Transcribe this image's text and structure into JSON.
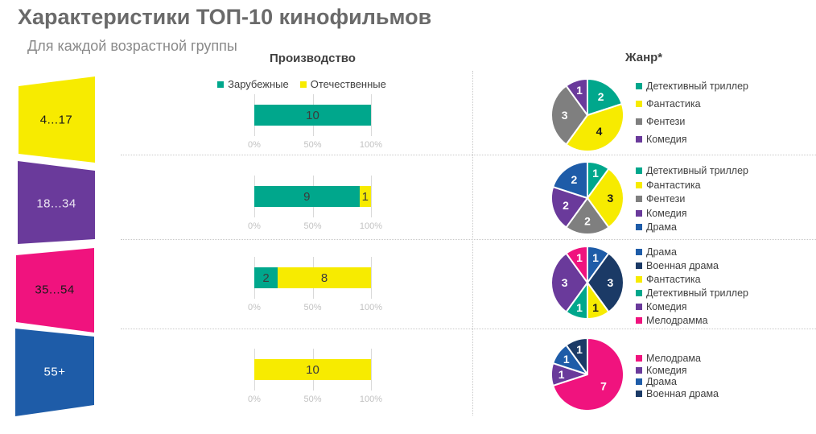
{
  "title": "Характеристики ТОП-10 кинофильмов",
  "subtitle": "Для каждой возрастной группы",
  "colors": {
    "teal": "#00A78C",
    "yellow": "#F7EB00",
    "gray": "#7F7F7F",
    "purple": "#6A3A9B",
    "blue": "#1E5CA8",
    "navy": "#1B3A66",
    "pink": "#F0137E",
    "title_gray": "#6A6A6A",
    "text_dark": "#404040",
    "axis_gray": "#C2C2C2",
    "grid_gray": "#D9D9D9"
  },
  "production": {
    "header": "Производство",
    "legend": [
      {
        "label": "Зарубежные",
        "color": "teal"
      },
      {
        "label": "Отечественные",
        "color": "yellow"
      }
    ],
    "axis_ticks": [
      "0%",
      "50%",
      "100%"
    ]
  },
  "genre": {
    "header": "Жанр*"
  },
  "rows": [
    {
      "age": "4...17",
      "shape_color": "yellow",
      "age_text_color": "#1a1a1a",
      "bar": [
        {
          "color": "teal",
          "value": 10
        }
      ],
      "pie": [
        {
          "color": "teal",
          "value": 2
        },
        {
          "color": "yellow",
          "value": 4
        },
        {
          "color": "gray",
          "value": 3
        },
        {
          "color": "purple",
          "value": 1
        }
      ],
      "legend": [
        {
          "color": "teal",
          "label": "Детективный триллер"
        },
        {
          "color": "yellow",
          "label": "Фантастика"
        },
        {
          "color": "gray",
          "label": "Фентези"
        },
        {
          "color": "purple",
          "label": "Комедия"
        }
      ]
    },
    {
      "age": "18...34",
      "shape_color": "purple",
      "age_text_color": "rgba(255,255,255,0.87)",
      "bar": [
        {
          "color": "teal",
          "value": 9
        },
        {
          "color": "yellow",
          "value": 1
        }
      ],
      "pie": [
        {
          "color": "teal",
          "value": 1
        },
        {
          "color": "yellow",
          "value": 3
        },
        {
          "color": "gray",
          "value": 2
        },
        {
          "color": "purple",
          "value": 2
        },
        {
          "color": "blue",
          "value": 2
        }
      ],
      "legend": [
        {
          "color": "teal",
          "label": "Детективный триллер"
        },
        {
          "color": "yellow",
          "label": "Фантастика"
        },
        {
          "color": "gray",
          "label": "Фентези"
        },
        {
          "color": "purple",
          "label": "Комедия"
        },
        {
          "color": "blue",
          "label": "Драма"
        }
      ]
    },
    {
      "age": "35...54",
      "shape_color": "pink",
      "age_text_color": "#1a1a1a",
      "bar": [
        {
          "color": "teal",
          "value": 2
        },
        {
          "color": "yellow",
          "value": 8
        }
      ],
      "pie": [
        {
          "color": "blue",
          "value": 1
        },
        {
          "color": "navy",
          "value": 3
        },
        {
          "color": "yellow",
          "value": 1
        },
        {
          "color": "teal",
          "value": 1
        },
        {
          "color": "purple",
          "value": 3
        },
        {
          "color": "pink",
          "value": 1
        }
      ],
      "legend": [
        {
          "color": "blue",
          "label": "Драма"
        },
        {
          "color": "navy",
          "label": "Военная драма"
        },
        {
          "color": "yellow",
          "label": "Фантастика"
        },
        {
          "color": "teal",
          "label": "Детективный триллер"
        },
        {
          "color": "purple",
          "label": "Комедия"
        },
        {
          "color": "pink",
          "label": "Мелодрамма"
        }
      ]
    },
    {
      "age": "55+",
      "shape_color": "blue",
      "age_text_color": "#ffffff",
      "bar": [
        {
          "color": "yellow",
          "value": 10
        }
      ],
      "pie": [
        {
          "color": "pink",
          "value": 7
        },
        {
          "color": "purple",
          "value": 1
        },
        {
          "color": "blue",
          "value": 1
        },
        {
          "color": "navy",
          "value": 1
        }
      ],
      "legend": [
        {
          "color": "pink",
          "label": "Мелодрама"
        },
        {
          "color": "purple",
          "label": "Комедия"
        },
        {
          "color": "blue",
          "label": "Драма"
        },
        {
          "color": "navy",
          "label": "Военная драма"
        }
      ]
    }
  ],
  "chart_data": [
    {
      "type": "bar",
      "title": "Производство",
      "orientation": "horizontal_stacked",
      "categories": [
        "4...17",
        "18...34",
        "35...54",
        "55+"
      ],
      "series": [
        {
          "name": "Зарубежные",
          "color": "#00A78C",
          "values": [
            10,
            9,
            2,
            0
          ]
        },
        {
          "name": "Отечественные",
          "color": "#F7EB00",
          "values": [
            0,
            1,
            8,
            10
          ]
        }
      ],
      "x_ticks": [
        "0%",
        "50%",
        "100%"
      ],
      "xlim": [
        0,
        100
      ],
      "legend_position": "top",
      "grid": true
    },
    {
      "type": "pie",
      "title": "Жанр* — 4...17",
      "labels": [
        "Детективный триллер",
        "Фантастика",
        "Фентези",
        "Комедия"
      ],
      "values": [
        2,
        4,
        3,
        1
      ],
      "colors": [
        "#00A78C",
        "#F7EB00",
        "#7F7F7F",
        "#6A3A9B"
      ],
      "legend_position": "right"
    },
    {
      "type": "pie",
      "title": "Жанр* — 18...34",
      "labels": [
        "Детективный триллер",
        "Фантастика",
        "Фентези",
        "Комедия",
        "Драма"
      ],
      "values": [
        1,
        3,
        2,
        2,
        2
      ],
      "colors": [
        "#00A78C",
        "#F7EB00",
        "#7F7F7F",
        "#6A3A9B",
        "#1E5CA8"
      ],
      "legend_position": "right"
    },
    {
      "type": "pie",
      "title": "Жанр* — 35...54",
      "labels": [
        "Драма",
        "Военная драма",
        "Фантастика",
        "Детективный триллер",
        "Комедия",
        "Мелодрамма"
      ],
      "values": [
        1,
        3,
        1,
        1,
        3,
        1
      ],
      "colors": [
        "#1E5CA8",
        "#1B3A66",
        "#F7EB00",
        "#00A78C",
        "#6A3A9B",
        "#F0137E"
      ],
      "legend_position": "right"
    },
    {
      "type": "pie",
      "title": "Жанр* — 55+",
      "labels": [
        "Мелодрама",
        "Комедия",
        "Драма",
        "Военная драма"
      ],
      "values": [
        7,
        1,
        1,
        1
      ],
      "colors": [
        "#F0137E",
        "#6A3A9B",
        "#1E5CA8",
        "#1B3A66"
      ],
      "legend_position": "right"
    }
  ]
}
